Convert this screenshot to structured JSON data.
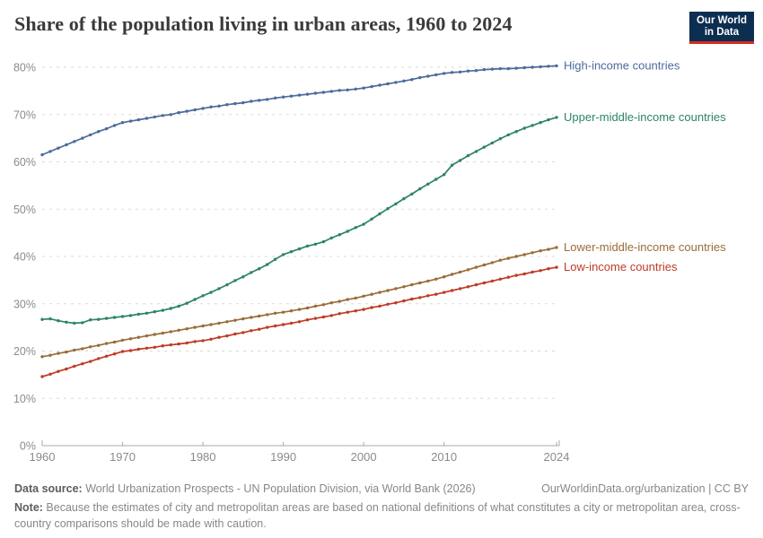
{
  "header": {
    "title": "Share of the population living in urban areas, 1960 to 2024",
    "logo": {
      "line1": "Our World",
      "line2": "in Data"
    }
  },
  "chart_data": {
    "type": "line",
    "title": "Share of the population living in urban areas, 1960 to 2024",
    "x_range": [
      1960,
      2024
    ],
    "x_step": 1,
    "xticks": [
      1960,
      1970,
      1980,
      1990,
      2000,
      2010,
      2024
    ],
    "ylim": [
      0,
      80
    ],
    "yticks": [
      0,
      10,
      20,
      30,
      40,
      50,
      60,
      70,
      80
    ],
    "ytick_suffix": "%",
    "grid": "horizontal-dashed",
    "legend_position": "right-of-line-ends",
    "series": [
      {
        "name": "High-income countries",
        "color": "#4c6a9c",
        "values": [
          61.5,
          62.2,
          62.9,
          63.6,
          64.3,
          65.0,
          65.7,
          66.4,
          67.0,
          67.7,
          68.3,
          68.6,
          68.9,
          69.2,
          69.5,
          69.8,
          70.0,
          70.4,
          70.7,
          71.0,
          71.3,
          71.6,
          71.8,
          72.1,
          72.3,
          72.5,
          72.8,
          73.0,
          73.2,
          73.5,
          73.7,
          73.9,
          74.1,
          74.3,
          74.5,
          74.7,
          74.9,
          75.1,
          75.2,
          75.4,
          75.6,
          75.9,
          76.2,
          76.5,
          76.8,
          77.1,
          77.4,
          77.8,
          78.1,
          78.4,
          78.7,
          78.9,
          79.0,
          79.2,
          79.3,
          79.5,
          79.6,
          79.7,
          79.7,
          79.8,
          79.9,
          80.0,
          80.1,
          80.2,
          80.3
        ]
      },
      {
        "name": "Upper-middle-income countries",
        "color": "#2c8465",
        "values": [
          26.7,
          26.8,
          26.4,
          26.1,
          25.9,
          26.0,
          26.6,
          26.7,
          26.9,
          27.1,
          27.3,
          27.5,
          27.8,
          28.0,
          28.3,
          28.6,
          29.0,
          29.5,
          30.1,
          30.9,
          31.7,
          32.4,
          33.2,
          34.0,
          34.9,
          35.7,
          36.6,
          37.4,
          38.3,
          39.4,
          40.4,
          41.0,
          41.6,
          42.2,
          42.6,
          43.1,
          43.9,
          44.6,
          45.3,
          46.1,
          46.8,
          47.9,
          49.0,
          50.1,
          51.1,
          52.2,
          53.2,
          54.3,
          55.3,
          56.3,
          57.3,
          59.3,
          60.3,
          61.3,
          62.2,
          63.1,
          64.0,
          64.9,
          65.7,
          66.4,
          67.1,
          67.7,
          68.3,
          68.9,
          69.4
        ]
      },
      {
        "name": "Lower-middle-income countries",
        "color": "#996d39",
        "values": [
          18.8,
          19.1,
          19.5,
          19.8,
          20.2,
          20.5,
          20.9,
          21.2,
          21.6,
          21.9,
          22.3,
          22.6,
          22.9,
          23.2,
          23.5,
          23.8,
          24.1,
          24.4,
          24.7,
          25.0,
          25.3,
          25.6,
          25.9,
          26.2,
          26.5,
          26.8,
          27.1,
          27.4,
          27.7,
          28.0,
          28.2,
          28.5,
          28.8,
          29.1,
          29.5,
          29.8,
          30.2,
          30.5,
          30.9,
          31.2,
          31.6,
          32.0,
          32.4,
          32.8,
          33.2,
          33.6,
          34.0,
          34.4,
          34.8,
          35.2,
          35.7,
          36.2,
          36.7,
          37.2,
          37.7,
          38.2,
          38.7,
          39.2,
          39.6,
          40.0,
          40.4,
          40.8,
          41.2,
          41.5,
          41.9
        ]
      },
      {
        "name": "Low-income countries",
        "color": "#be3b26",
        "values": [
          14.6,
          15.1,
          15.7,
          16.2,
          16.8,
          17.3,
          17.8,
          18.4,
          18.9,
          19.4,
          19.9,
          20.1,
          20.4,
          20.6,
          20.8,
          21.1,
          21.3,
          21.5,
          21.7,
          22.0,
          22.2,
          22.5,
          22.9,
          23.2,
          23.6,
          23.9,
          24.3,
          24.6,
          25.0,
          25.3,
          25.6,
          25.9,
          26.2,
          26.6,
          26.9,
          27.2,
          27.5,
          27.9,
          28.2,
          28.5,
          28.8,
          29.2,
          29.5,
          29.9,
          30.2,
          30.6,
          31.0,
          31.3,
          31.7,
          32.0,
          32.4,
          32.8,
          33.2,
          33.6,
          34.0,
          34.4,
          34.8,
          35.2,
          35.6,
          36.0,
          36.3,
          36.7,
          37.0,
          37.4,
          37.7
        ]
      }
    ]
  },
  "footer": {
    "data_source_label": "Data source:",
    "data_source_text": " World Urbanization Prospects - UN Population Division, via World Bank (2026)",
    "link": "OurWorldinData.org/urbanization | CC BY",
    "note_label": "Note:",
    "note_text": " Because the estimates of city and metropolitan areas are based on national definitions of what constitutes a city or metropolitan area, cross-country comparisons should be made with caution."
  }
}
